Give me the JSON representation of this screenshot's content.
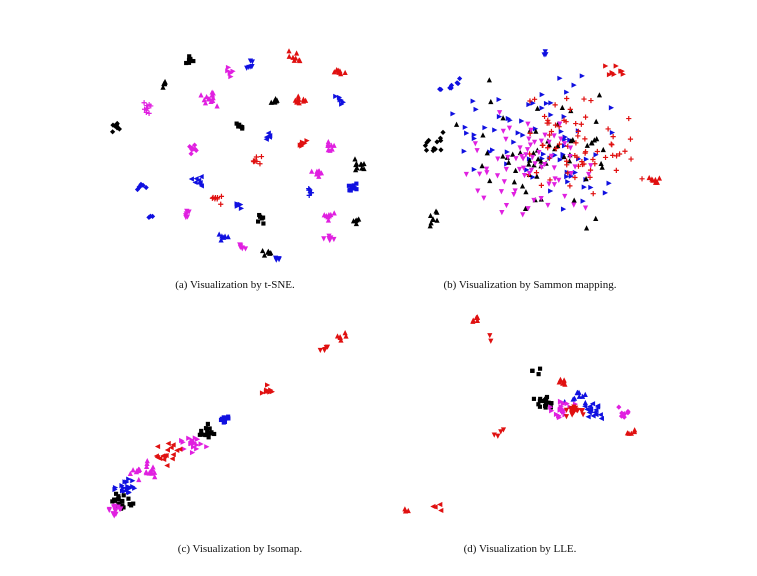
{
  "colors": {
    "black": "#000000",
    "blue": "#1010e0",
    "red": "#e01010",
    "magenta": "#e020e0"
  },
  "panels": [
    {
      "caption": "(a)  Visualization by t-SNE."
    },
    {
      "caption": "(b)  Visualization by Sammon mapping."
    },
    {
      "caption": "(c)  Visualization by Isomap."
    },
    {
      "caption": "(d)  Visualization by LLE."
    }
  ],
  "chart_data": [
    {
      "type": "scatter",
      "title": "(a)  Visualization by t-SNE.",
      "axes": "none",
      "grid": false,
      "xlim": [
        0,
        100
      ],
      "ylim": [
        0,
        100
      ],
      "clusters": [
        {
          "x": 32,
          "y": 93,
          "color": "black",
          "marker": "square",
          "n": 8,
          "spread": 4
        },
        {
          "x": 23,
          "y": 83,
          "color": "black",
          "marker": "triangle-up",
          "n": 6,
          "spread": 3
        },
        {
          "x": 16,
          "y": 71,
          "color": "magenta",
          "marker": "plus",
          "n": 10,
          "spread": 4
        },
        {
          "x": 4,
          "y": 63,
          "color": "black",
          "marker": "diamond",
          "n": 8,
          "spread": 4
        },
        {
          "x": 40,
          "y": 76,
          "color": "magenta",
          "marker": "triangle-up",
          "n": 14,
          "spread": 5
        },
        {
          "x": 48,
          "y": 88,
          "color": "magenta",
          "marker": "triangle-right",
          "n": 6,
          "spread": 3
        },
        {
          "x": 55,
          "y": 91,
          "color": "blue",
          "marker": "triangle-down",
          "n": 6,
          "spread": 3
        },
        {
          "x": 74,
          "y": 96,
          "color": "red",
          "marker": "triangle-up",
          "n": 8,
          "spread": 4
        },
        {
          "x": 90,
          "y": 88,
          "color": "red",
          "marker": "triangle-up",
          "n": 8,
          "spread": 3
        },
        {
          "x": 75,
          "y": 76,
          "color": "red",
          "marker": "triangle-up",
          "n": 10,
          "spread": 4
        },
        {
          "x": 91,
          "y": 75,
          "color": "blue",
          "marker": "triangle-right",
          "n": 6,
          "spread": 3
        },
        {
          "x": 66,
          "y": 74,
          "color": "black",
          "marker": "triangle-up",
          "n": 6,
          "spread": 3
        },
        {
          "x": 52,
          "y": 62,
          "color": "black",
          "marker": "square",
          "n": 6,
          "spread": 3
        },
        {
          "x": 63,
          "y": 58,
          "color": "blue",
          "marker": "triangle-left",
          "n": 5,
          "spread": 3
        },
        {
          "x": 33,
          "y": 53,
          "color": "magenta",
          "marker": "diamond",
          "n": 8,
          "spread": 3
        },
        {
          "x": 58,
          "y": 48,
          "color": "red",
          "marker": "plus",
          "n": 8,
          "spread": 3
        },
        {
          "x": 77,
          "y": 55,
          "color": "red",
          "marker": "triangle-right",
          "n": 6,
          "spread": 3
        },
        {
          "x": 87,
          "y": 55,
          "color": "magenta",
          "marker": "triangle-up",
          "n": 8,
          "spread": 3
        },
        {
          "x": 98,
          "y": 46,
          "color": "black",
          "marker": "triangle-up",
          "n": 10,
          "spread": 4
        },
        {
          "x": 95,
          "y": 35,
          "color": "blue",
          "marker": "square",
          "n": 10,
          "spread": 3
        },
        {
          "x": 82,
          "y": 42,
          "color": "magenta",
          "marker": "triangle-up",
          "n": 8,
          "spread": 3
        },
        {
          "x": 79,
          "y": 33,
          "color": "blue",
          "marker": "plus",
          "n": 8,
          "spread": 3
        },
        {
          "x": 14,
          "y": 36,
          "color": "blue",
          "marker": "diamond",
          "n": 6,
          "spread": 3
        },
        {
          "x": 35,
          "y": 38,
          "color": "blue",
          "marker": "triangle-left",
          "n": 8,
          "spread": 4
        },
        {
          "x": 43,
          "y": 30,
          "color": "red",
          "marker": "plus",
          "n": 8,
          "spread": 3
        },
        {
          "x": 52,
          "y": 27,
          "color": "blue",
          "marker": "triangle-right",
          "n": 6,
          "spread": 3
        },
        {
          "x": 60,
          "y": 21,
          "color": "black",
          "marker": "square",
          "n": 6,
          "spread": 3
        },
        {
          "x": 32,
          "y": 23,
          "color": "magenta",
          "marker": "triangle-down",
          "n": 6,
          "spread": 3
        },
        {
          "x": 45,
          "y": 12,
          "color": "blue",
          "marker": "triangle-up",
          "n": 6,
          "spread": 3
        },
        {
          "x": 53,
          "y": 8,
          "color": "magenta",
          "marker": "triangle-down",
          "n": 8,
          "spread": 3
        },
        {
          "x": 62,
          "y": 5,
          "color": "black",
          "marker": "triangle-up",
          "n": 6,
          "spread": 3
        },
        {
          "x": 66,
          "y": 2,
          "color": "blue",
          "marker": "triangle-down",
          "n": 4,
          "spread": 2
        },
        {
          "x": 86,
          "y": 22,
          "color": "magenta",
          "marker": "triangle-up",
          "n": 8,
          "spread": 3
        },
        {
          "x": 87,
          "y": 12,
          "color": "magenta",
          "marker": "triangle-down",
          "n": 6,
          "spread": 3
        },
        {
          "x": 97,
          "y": 20,
          "color": "black",
          "marker": "triangle-up",
          "n": 5,
          "spread": 2
        },
        {
          "x": 18,
          "y": 22,
          "color": "blue",
          "marker": "diamond",
          "n": 3,
          "spread": 2
        }
      ]
    },
    {
      "type": "scatter",
      "title": "(b)  Visualization by Sammon mapping.",
      "axes": "none",
      "grid": false,
      "xlim": [
        0,
        100
      ],
      "ylim": [
        0,
        100
      ],
      "clusters": [
        {
          "x": 55,
          "y": 55,
          "color": "blue",
          "marker": "triangle-right",
          "n": 70,
          "spread": 42
        },
        {
          "x": 55,
          "y": 50,
          "color": "black",
          "marker": "triangle-up",
          "n": 60,
          "spread": 40
        },
        {
          "x": 65,
          "y": 52,
          "color": "red",
          "marker": "plus",
          "n": 70,
          "spread": 32
        },
        {
          "x": 50,
          "y": 45,
          "color": "magenta",
          "marker": "triangle-down",
          "n": 70,
          "spread": 36
        },
        {
          "x": 15,
          "y": 55,
          "color": "black",
          "marker": "diamond",
          "n": 12,
          "spread": 8
        },
        {
          "x": 15,
          "y": 20,
          "color": "black",
          "marker": "triangle-up",
          "n": 8,
          "spread": 6
        },
        {
          "x": 82,
          "y": 88,
          "color": "red",
          "marker": "triangle-right",
          "n": 8,
          "spread": 6
        },
        {
          "x": 97,
          "y": 38,
          "color": "red",
          "marker": "triangle-up",
          "n": 8,
          "spread": 3
        },
        {
          "x": 55,
          "y": 97,
          "color": "blue",
          "marker": "triangle-down",
          "n": 3,
          "spread": 2
        },
        {
          "x": 20,
          "y": 82,
          "color": "blue",
          "marker": "diamond",
          "n": 8,
          "spread": 6
        }
      ]
    },
    {
      "type": "scatter",
      "title": "(c)  Visualization by Isomap.",
      "axes": "none",
      "grid": false,
      "xlim": [
        0,
        100
      ],
      "ylim": [
        0,
        100
      ],
      "clusters": [
        {
          "x": 95,
          "y": 97,
          "color": "red",
          "marker": "triangle-up",
          "n": 6,
          "spread": 3
        },
        {
          "x": 88,
          "y": 91,
          "color": "red",
          "marker": "triangle-down",
          "n": 5,
          "spread": 2
        },
        {
          "x": 65,
          "y": 70,
          "color": "red",
          "marker": "triangle-right",
          "n": 8,
          "spread": 4
        },
        {
          "x": 48,
          "y": 55,
          "color": "blue",
          "marker": "square",
          "n": 10,
          "spread": 4
        },
        {
          "x": 42,
          "y": 48,
          "color": "black",
          "marker": "square",
          "n": 16,
          "spread": 6
        },
        {
          "x": 35,
          "y": 44,
          "color": "magenta",
          "marker": "triangle-right",
          "n": 18,
          "spread": 7
        },
        {
          "x": 25,
          "y": 38,
          "color": "red",
          "marker": "triangle-left",
          "n": 18,
          "spread": 7
        },
        {
          "x": 15,
          "y": 30,
          "color": "magenta",
          "marker": "triangle-up",
          "n": 20,
          "spread": 7
        },
        {
          "x": 8,
          "y": 22,
          "color": "blue",
          "marker": "triangle-right",
          "n": 18,
          "spread": 6
        },
        {
          "x": 6,
          "y": 14,
          "color": "black",
          "marker": "square",
          "n": 20,
          "spread": 6
        },
        {
          "x": 4,
          "y": 10,
          "color": "magenta",
          "marker": "triangle-down",
          "n": 14,
          "spread": 4
        }
      ]
    },
    {
      "type": "scatter",
      "title": "(d)  Visualization by LLE.",
      "axes": "none",
      "grid": false,
      "xlim": [
        0,
        100
      ],
      "ylim": [
        0,
        100
      ],
      "clusters": [
        {
          "x": 30,
          "y": 97,
          "color": "red",
          "marker": "triangle-up",
          "n": 6,
          "spread": 5
        },
        {
          "x": 35,
          "y": 87,
          "color": "red",
          "marker": "triangle-down",
          "n": 2,
          "spread": 3
        },
        {
          "x": 52,
          "y": 73,
          "color": "black",
          "marker": "square",
          "n": 4,
          "spread": 3
        },
        {
          "x": 62,
          "y": 68,
          "color": "red",
          "marker": "triangle-up",
          "n": 8,
          "spread": 3
        },
        {
          "x": 68,
          "y": 60,
          "color": "blue",
          "marker": "triangle-up",
          "n": 10,
          "spread": 6
        },
        {
          "x": 55,
          "y": 58,
          "color": "black",
          "marker": "square",
          "n": 16,
          "spread": 5
        },
        {
          "x": 62,
          "y": 55,
          "color": "magenta",
          "marker": "triangle-right",
          "n": 24,
          "spread": 6
        },
        {
          "x": 66,
          "y": 54,
          "color": "red",
          "marker": "triangle-down",
          "n": 18,
          "spread": 5
        },
        {
          "x": 74,
          "y": 54,
          "color": "blue",
          "marker": "triangle-left",
          "n": 16,
          "spread": 6
        },
        {
          "x": 85,
          "y": 53,
          "color": "magenta",
          "marker": "diamond",
          "n": 8,
          "spread": 4
        },
        {
          "x": 88,
          "y": 45,
          "color": "red",
          "marker": "triangle-up",
          "n": 5,
          "spread": 4
        },
        {
          "x": 38,
          "y": 45,
          "color": "red",
          "marker": "triangle-down",
          "n": 4,
          "spread": 4
        },
        {
          "x": 15,
          "y": 10,
          "color": "red",
          "marker": "triangle-left",
          "n": 4,
          "spread": 3
        },
        {
          "x": 5,
          "y": 8,
          "color": "red",
          "marker": "triangle-up",
          "n": 3,
          "spread": 2
        }
      ]
    }
  ]
}
